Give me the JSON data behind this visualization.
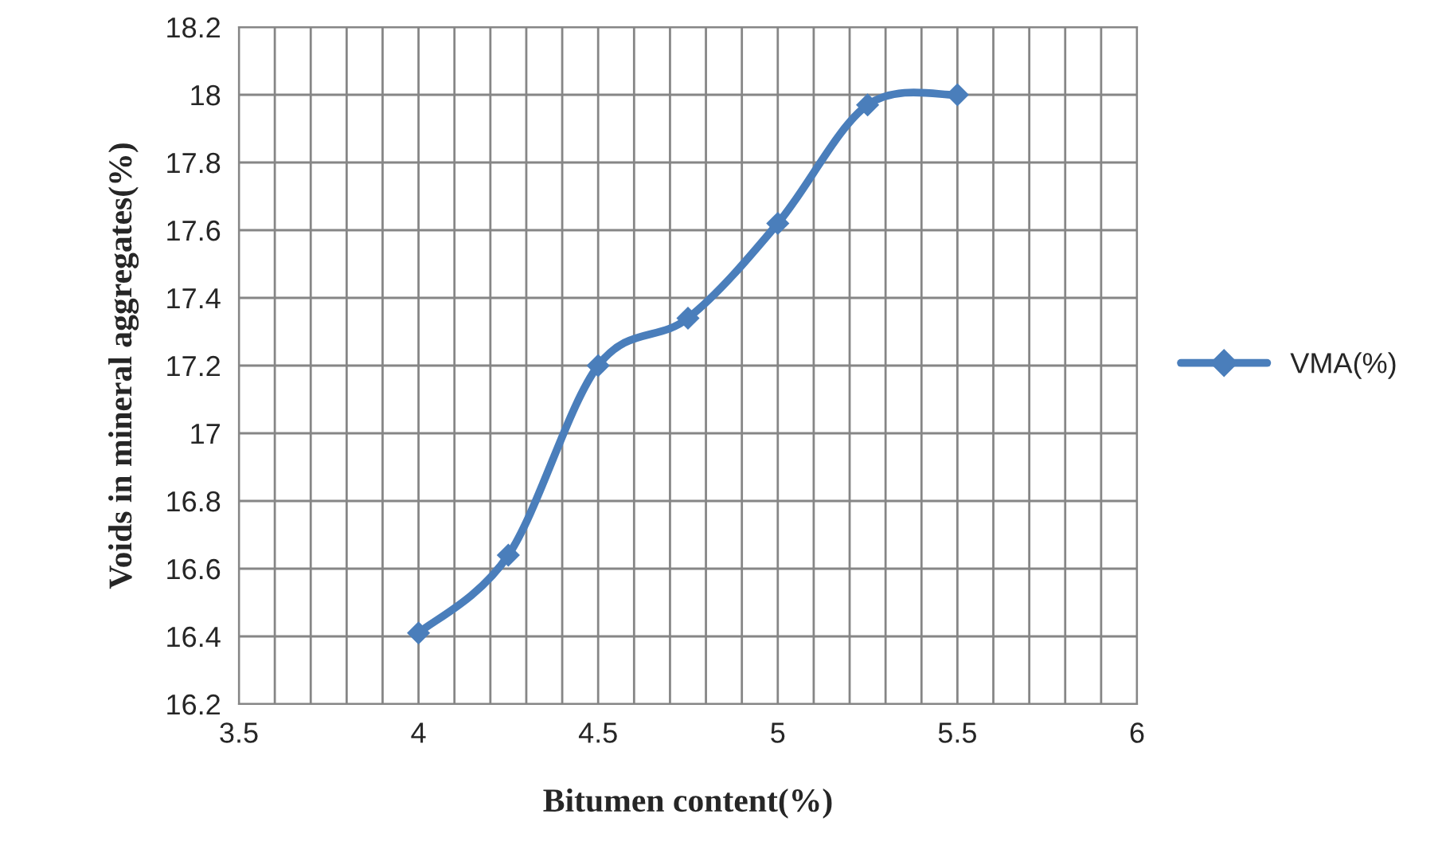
{
  "chart_data": {
    "type": "line",
    "xlabel": "Bitumen content(%)",
    "ylabel": "Voids in mineral aggregates(%)",
    "x": [
      4,
      4.25,
      4.5,
      4.75,
      5,
      5.25,
      5.5
    ],
    "series": [
      {
        "name": "VMA(%)",
        "color": "#4a7ebb",
        "values": [
          16.41,
          16.64,
          17.2,
          17.34,
          17.62,
          17.97,
          18.0
        ]
      }
    ],
    "xlim": [
      3.5,
      6
    ],
    "ylim": [
      16.2,
      18.2
    ],
    "xticks": [
      3.5,
      {
        "value": 3.6,
        "label": null
      },
      {
        "value": 3.7,
        "label": null
      },
      {
        "value": 3.8,
        "label": null
      },
      {
        "value": 3.9,
        "label": null
      },
      4,
      {
        "value": 4.1,
        "label": null
      },
      {
        "value": 4.2,
        "label": null
      },
      {
        "value": 4.3,
        "label": null
      },
      {
        "value": 4.4,
        "label": null
      },
      4.5,
      {
        "value": 4.6,
        "label": null
      },
      {
        "value": 4.7,
        "label": null
      },
      {
        "value": 4.8,
        "label": null
      },
      {
        "value": 4.9,
        "label": null
      },
      5,
      {
        "value": 5.1,
        "label": null
      },
      {
        "value": 5.2,
        "label": null
      },
      {
        "value": 5.3,
        "label": null
      },
      {
        "value": 5.4,
        "label": null
      },
      5.5,
      {
        "value": 5.6,
        "label": null
      },
      {
        "value": 5.7,
        "label": null
      },
      {
        "value": 5.8,
        "label": null
      },
      {
        "value": 5.9,
        "label": null
      },
      6
    ],
    "yticks": [
      16.2,
      16.4,
      16.6,
      16.8,
      17,
      17.2,
      17.4,
      17.6,
      17.8,
      18,
      18.2
    ],
    "grid": true,
    "legend": "right",
    "marker": "diamond",
    "line_style": "solid"
  }
}
